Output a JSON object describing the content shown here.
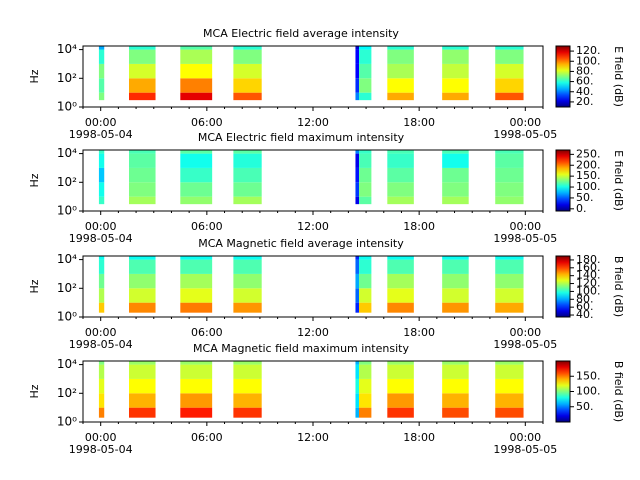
{
  "chart_data": [
    {
      "type": "heatmap",
      "title": "MCA  Electric field average intensity",
      "ylabel": "Hz",
      "clabel": "E field (dB)",
      "xlim": [
        -1,
        25
      ],
      "xticks": [
        {
          "value": 0,
          "label": "00:00"
        },
        {
          "value": 6,
          "label": "06:00"
        },
        {
          "value": 12,
          "label": "12:00"
        },
        {
          "value": 18,
          "label": "18:00"
        },
        {
          "value": 24,
          "label": "00:00"
        }
      ],
      "date_labels": [
        {
          "value": 0,
          "label": "1998-05-04"
        },
        {
          "value": 24,
          "label": "1998-05-05"
        }
      ],
      "ylim": [
        1,
        17783
      ],
      "log_y": true,
      "yticks": [
        {
          "value": 1,
          "label": "10⁰"
        },
        {
          "value": 100,
          "label": "10²"
        },
        {
          "value": 10000,
          "label": "10⁴"
        }
      ],
      "x_bins": [
        [
          -0.1,
          0.2
        ],
        [
          1.6,
          3.1
        ],
        [
          4.5,
          6.3
        ],
        [
          7.5,
          9.1
        ],
        [
          14.4,
          14.6
        ],
        [
          14.6,
          15.3
        ],
        [
          16.2,
          17.7
        ],
        [
          19.3,
          20.8
        ],
        [
          22.3,
          23.9
        ]
      ],
      "y_bins": [
        3,
        10,
        100,
        1000,
        10000,
        17000
      ],
      "z": [
        [
          70,
          65,
          70,
          60,
          45
        ],
        [
          110,
          95,
          80,
          70,
          60
        ],
        [
          118,
          100,
          85,
          75,
          65
        ],
        [
          105,
          90,
          80,
          70,
          60
        ],
        [
          40,
          30,
          25,
          25,
          20
        ],
        [
          60,
          70,
          65,
          60,
          55
        ],
        [
          95,
          85,
          75,
          70,
          60
        ],
        [
          95,
          85,
          78,
          72,
          60
        ],
        [
          105,
          90,
          80,
          70,
          60
        ]
      ],
      "clim": [
        10,
        130
      ],
      "cticks": [
        {
          "value": 20,
          "label": "20."
        },
        {
          "value": 40,
          "label": "40."
        },
        {
          "value": 60,
          "label": "60."
        },
        {
          "value": 80,
          "label": "80."
        },
        {
          "value": 100,
          "label": "100."
        },
        {
          "value": 120,
          "label": "120."
        }
      ]
    },
    {
      "type": "heatmap",
      "title": "MCA  Electric field maximum intensity",
      "ylabel": "Hz",
      "clabel": "E field (dB)",
      "xlim": [
        -1,
        25
      ],
      "xticks": [
        {
          "value": 0,
          "label": "00:00"
        },
        {
          "value": 6,
          "label": "06:00"
        },
        {
          "value": 12,
          "label": "12:00"
        },
        {
          "value": 18,
          "label": "18:00"
        },
        {
          "value": 24,
          "label": "00:00"
        }
      ],
      "date_labels": [
        {
          "value": 0,
          "label": "1998-05-04"
        },
        {
          "value": 24,
          "label": "1998-05-05"
        }
      ],
      "ylim": [
        1,
        17783
      ],
      "log_y": true,
      "yticks": [
        {
          "value": 1,
          "label": "10⁰"
        },
        {
          "value": 100,
          "label": "10²"
        },
        {
          "value": 10000,
          "label": "10⁴"
        }
      ],
      "x_bins": [
        [
          -0.1,
          0.2
        ],
        [
          1.6,
          3.1
        ],
        [
          4.5,
          6.3
        ],
        [
          7.5,
          9.1
        ],
        [
          14.4,
          14.6
        ],
        [
          14.6,
          15.3
        ],
        [
          16.2,
          17.7
        ],
        [
          19.3,
          20.8
        ],
        [
          22.3,
          23.9
        ]
      ],
      "y_bins": [
        3,
        10,
        100,
        1000,
        10000,
        17000
      ],
      "z": [
        [
          110,
          100,
          80,
          100,
          110
        ],
        [
          140,
          130,
          125,
          120,
          115
        ],
        [
          135,
          125,
          110,
          100,
          120
        ],
        [
          140,
          125,
          115,
          105,
          120
        ],
        [
          20,
          40,
          30,
          20,
          60
        ],
        [
          120,
          130,
          125,
          115,
          110
        ],
        [
          140,
          130,
          120,
          110,
          115
        ],
        [
          140,
          130,
          125,
          100,
          115
        ],
        [
          135,
          130,
          125,
          120,
          115
        ]
      ],
      "clim": [
        -10,
        270
      ],
      "cticks": [
        {
          "value": 0,
          "label": "0."
        },
        {
          "value": 50,
          "label": "50."
        },
        {
          "value": 100,
          "label": "100."
        },
        {
          "value": 150,
          "label": "150."
        },
        {
          "value": 200,
          "label": "200."
        },
        {
          "value": 250,
          "label": "250."
        }
      ]
    },
    {
      "type": "heatmap",
      "title": "MCA  Magnetic field average intensity",
      "ylabel": "Hz",
      "clabel": "B field (dB)",
      "xlim": [
        -1,
        25
      ],
      "xticks": [
        {
          "value": 0,
          "label": "00:00"
        },
        {
          "value": 6,
          "label": "06:00"
        },
        {
          "value": 12,
          "label": "12:00"
        },
        {
          "value": 18,
          "label": "18:00"
        },
        {
          "value": 24,
          "label": "00:00"
        }
      ],
      "date_labels": [
        {
          "value": 0,
          "label": "1998-05-04"
        },
        {
          "value": 24,
          "label": "1998-05-05"
        }
      ],
      "ylim": [
        1,
        17783
      ],
      "log_y": true,
      "yticks": [
        {
          "value": 1,
          "label": "10⁰"
        },
        {
          "value": 100,
          "label": "10²"
        },
        {
          "value": 10000,
          "label": "10⁴"
        }
      ],
      "x_bins": [
        [
          -0.1,
          0.2
        ],
        [
          1.6,
          3.1
        ],
        [
          4.5,
          6.3
        ],
        [
          7.5,
          9.1
        ],
        [
          14.4,
          14.6
        ],
        [
          14.6,
          15.3
        ],
        [
          16.2,
          17.7
        ],
        [
          19.3,
          20.8
        ],
        [
          22.3,
          23.9
        ]
      ],
      "y_bins": [
        2,
        10,
        100,
        1000,
        10000,
        17000
      ],
      "z": [
        [
          140,
          120,
          110,
          100,
          95
        ],
        [
          150,
          125,
          115,
          105,
          95
        ],
        [
          152,
          128,
          118,
          105,
          95
        ],
        [
          148,
          125,
          115,
          105,
          95
        ],
        [
          60,
          70,
          80,
          70,
          60
        ],
        [
          140,
          125,
          110,
          100,
          95
        ],
        [
          150,
          128,
          118,
          105,
          95
        ],
        [
          148,
          125,
          115,
          105,
          95
        ],
        [
          145,
          125,
          115,
          105,
          95
        ]
      ],
      "clim": [
        35,
        190
      ],
      "cticks": [
        {
          "value": 40,
          "label": "40."
        },
        {
          "value": 60,
          "label": "60."
        },
        {
          "value": 80,
          "label": "80."
        },
        {
          "value": 100,
          "label": "100."
        },
        {
          "value": 120,
          "label": "120."
        },
        {
          "value": 140,
          "label": "140."
        },
        {
          "value": 160,
          "label": "160."
        },
        {
          "value": 180,
          "label": "180."
        }
      ]
    },
    {
      "type": "heatmap",
      "title": "MCA  Magnetic field maximum intensity",
      "ylabel": "Hz",
      "clabel": "B field (dB)",
      "xlim": [
        -1,
        25
      ],
      "xticks": [
        {
          "value": 0,
          "label": "00:00"
        },
        {
          "value": 6,
          "label": "06:00"
        },
        {
          "value": 12,
          "label": "12:00"
        },
        {
          "value": 18,
          "label": "18:00"
        },
        {
          "value": 24,
          "label": "00:00"
        }
      ],
      "date_labels": [
        {
          "value": 0,
          "label": "1998-05-04"
        },
        {
          "value": 24,
          "label": "1998-05-05"
        }
      ],
      "ylim": [
        1,
        17783
      ],
      "log_y": true,
      "yticks": [
        {
          "value": 1,
          "label": "10⁰"
        },
        {
          "value": 100,
          "label": "10²"
        },
        {
          "value": 10000,
          "label": "10⁴"
        }
      ],
      "x_bins": [
        [
          -0.1,
          0.2
        ],
        [
          1.6,
          3.1
        ],
        [
          4.5,
          6.3
        ],
        [
          7.5,
          9.1
        ],
        [
          14.4,
          14.6
        ],
        [
          14.6,
          15.3
        ],
        [
          16.2,
          17.7
        ],
        [
          19.3,
          20.8
        ],
        [
          22.3,
          23.9
        ]
      ],
      "y_bins": [
        2,
        10,
        100,
        1000,
        10000,
        17000
      ],
      "z": [
        [
          150,
          130,
          120,
          110,
          100
        ],
        [
          165,
          140,
          125,
          115,
          105
        ],
        [
          170,
          145,
          125,
          115,
          105
        ],
        [
          165,
          140,
          125,
          115,
          105
        ],
        [
          60,
          70,
          80,
          70,
          60
        ],
        [
          150,
          130,
          120,
          110,
          100
        ],
        [
          165,
          145,
          125,
          115,
          105
        ],
        [
          160,
          140,
          125,
          115,
          105
        ],
        [
          160,
          140,
          125,
          115,
          105
        ]
      ],
      "clim": [
        0,
        200
      ],
      "cticks": [
        {
          "value": 50,
          "label": "50."
        },
        {
          "value": 100,
          "label": "100."
        },
        {
          "value": 150,
          "label": "150."
        }
      ]
    }
  ]
}
